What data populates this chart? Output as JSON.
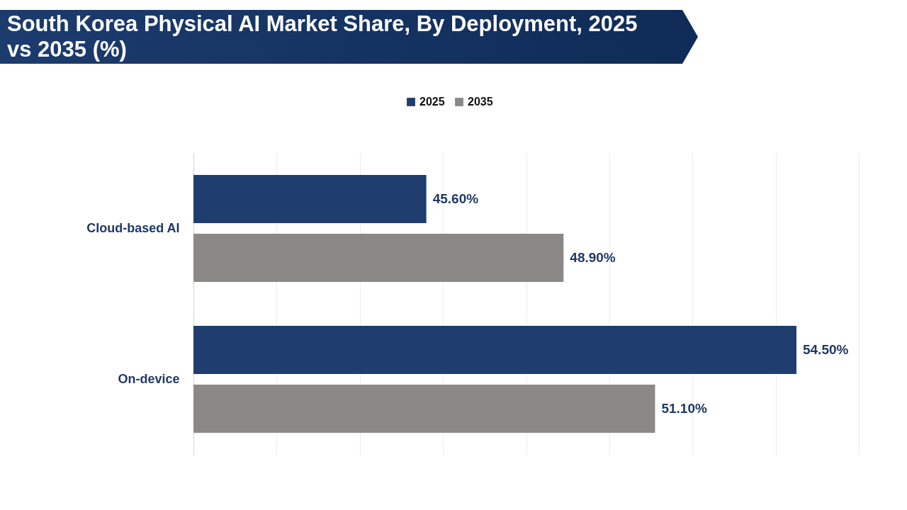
{
  "chart_data": {
    "type": "bar",
    "orientation": "horizontal",
    "title": "South Korea Physical AI Market Share, By Deployment, 2025 vs 2035 (%)",
    "categories": [
      "Cloud-based AI",
      "On-device"
    ],
    "series": [
      {
        "name": "2025",
        "color": "#1f3d6e",
        "values": [
          45.6,
          54.5
        ],
        "value_labels": [
          "45.60%",
          "54.50%"
        ]
      },
      {
        "name": "2035",
        "color": "#8c8888",
        "values": [
          48.9,
          51.1
        ],
        "value_labels": [
          "48.90%",
          "51.10%"
        ]
      }
    ],
    "xlim": [
      40,
      56
    ],
    "xticks": [
      {
        "value": 40,
        "label": null
      },
      {
        "value": 42,
        "label": null
      },
      {
        "value": 44,
        "label": null
      },
      {
        "value": 46,
        "label": null
      },
      {
        "value": 48,
        "label": null
      },
      {
        "value": 50,
        "label": null
      },
      {
        "value": 52,
        "label": null
      },
      {
        "value": 54,
        "label": null
      },
      {
        "value": 56,
        "label": null
      }
    ],
    "grid": "x",
    "legend": "top",
    "tick_labels": "y"
  }
}
